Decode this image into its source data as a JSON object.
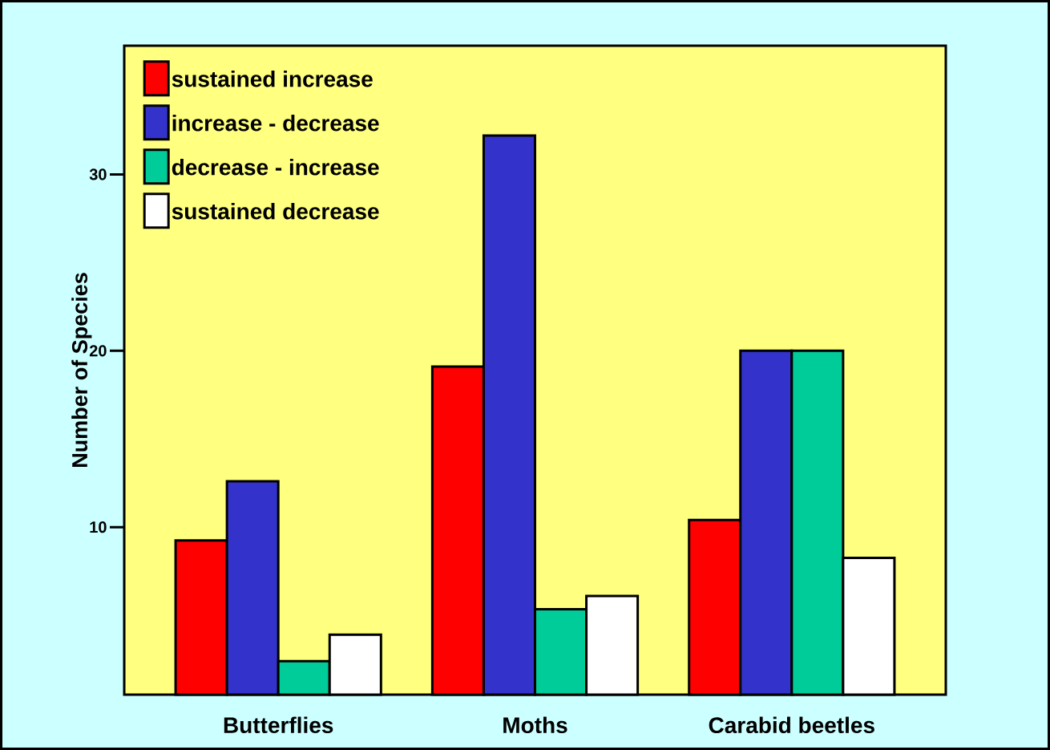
{
  "chart_data": {
    "type": "bar",
    "ylabel": "Number of Species",
    "categories": [
      "Butterflies",
      "Moths",
      "Carabid beetles"
    ],
    "series": [
      {
        "name": "sustained increase",
        "color": "#ff0000",
        "values": [
          9.25,
          19.1,
          10.4
        ]
      },
      {
        "name": "increase - decrease",
        "color": "#3333cc",
        "values": [
          12.6,
          32.2,
          20
        ]
      },
      {
        "name": "decrease - increase",
        "color": "#00cc99",
        "values": [
          2.4,
          5.35,
          20
        ]
      },
      {
        "name": "sustained decrease",
        "color": "#ffffff",
        "values": [
          3.9,
          6.1,
          8.25
        ]
      }
    ],
    "ylim": [
      0.5,
      37.3
    ],
    "yticks": [
      10,
      20,
      30
    ],
    "legend": "top left",
    "grid": false
  }
}
